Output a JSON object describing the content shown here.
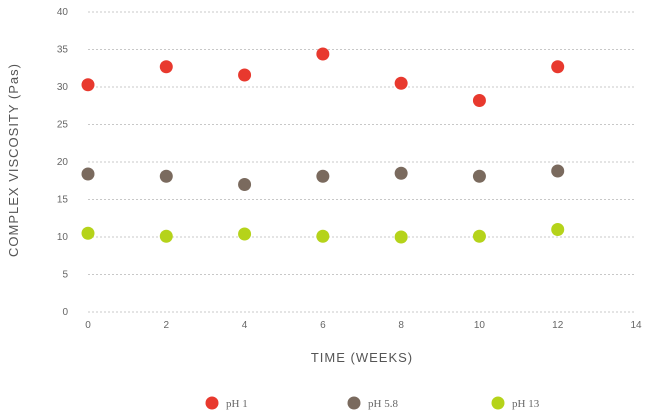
{
  "chart_data": {
    "type": "scatter",
    "xlabel": "TIME (WEEKS)",
    "ylabel": "COMPLEX VISCOSITY (Pas)",
    "xlim": [
      0,
      14
    ],
    "ylim": [
      0,
      40
    ],
    "x_ticks": [
      "0",
      "2",
      "4",
      "6",
      "8",
      "10",
      "12",
      "14"
    ],
    "y_ticks": [
      "0",
      "5",
      "10",
      "15",
      "20",
      "25",
      "30",
      "35",
      "40"
    ],
    "grid": true,
    "legend_position": "bottom",
    "series": [
      {
        "name": "pH 1",
        "color": "#e8392e",
        "x": [
          0,
          2,
          4,
          6,
          8,
          10,
          12
        ],
        "y": [
          30.3,
          32.7,
          31.6,
          34.4,
          30.5,
          28.2,
          32.7
        ]
      },
      {
        "name": "pH 5.8",
        "color": "#7a6a5e",
        "x": [
          0,
          2,
          4,
          6,
          8,
          10,
          12
        ],
        "y": [
          18.4,
          18.1,
          17.0,
          18.1,
          18.5,
          18.1,
          18.8
        ]
      },
      {
        "name": "pH 13",
        "color": "#b5d31a",
        "x": [
          0,
          2,
          4,
          6,
          8,
          10,
          12
        ],
        "y": [
          10.5,
          10.1,
          10.4,
          10.1,
          10.0,
          10.1,
          11.0
        ]
      }
    ]
  }
}
